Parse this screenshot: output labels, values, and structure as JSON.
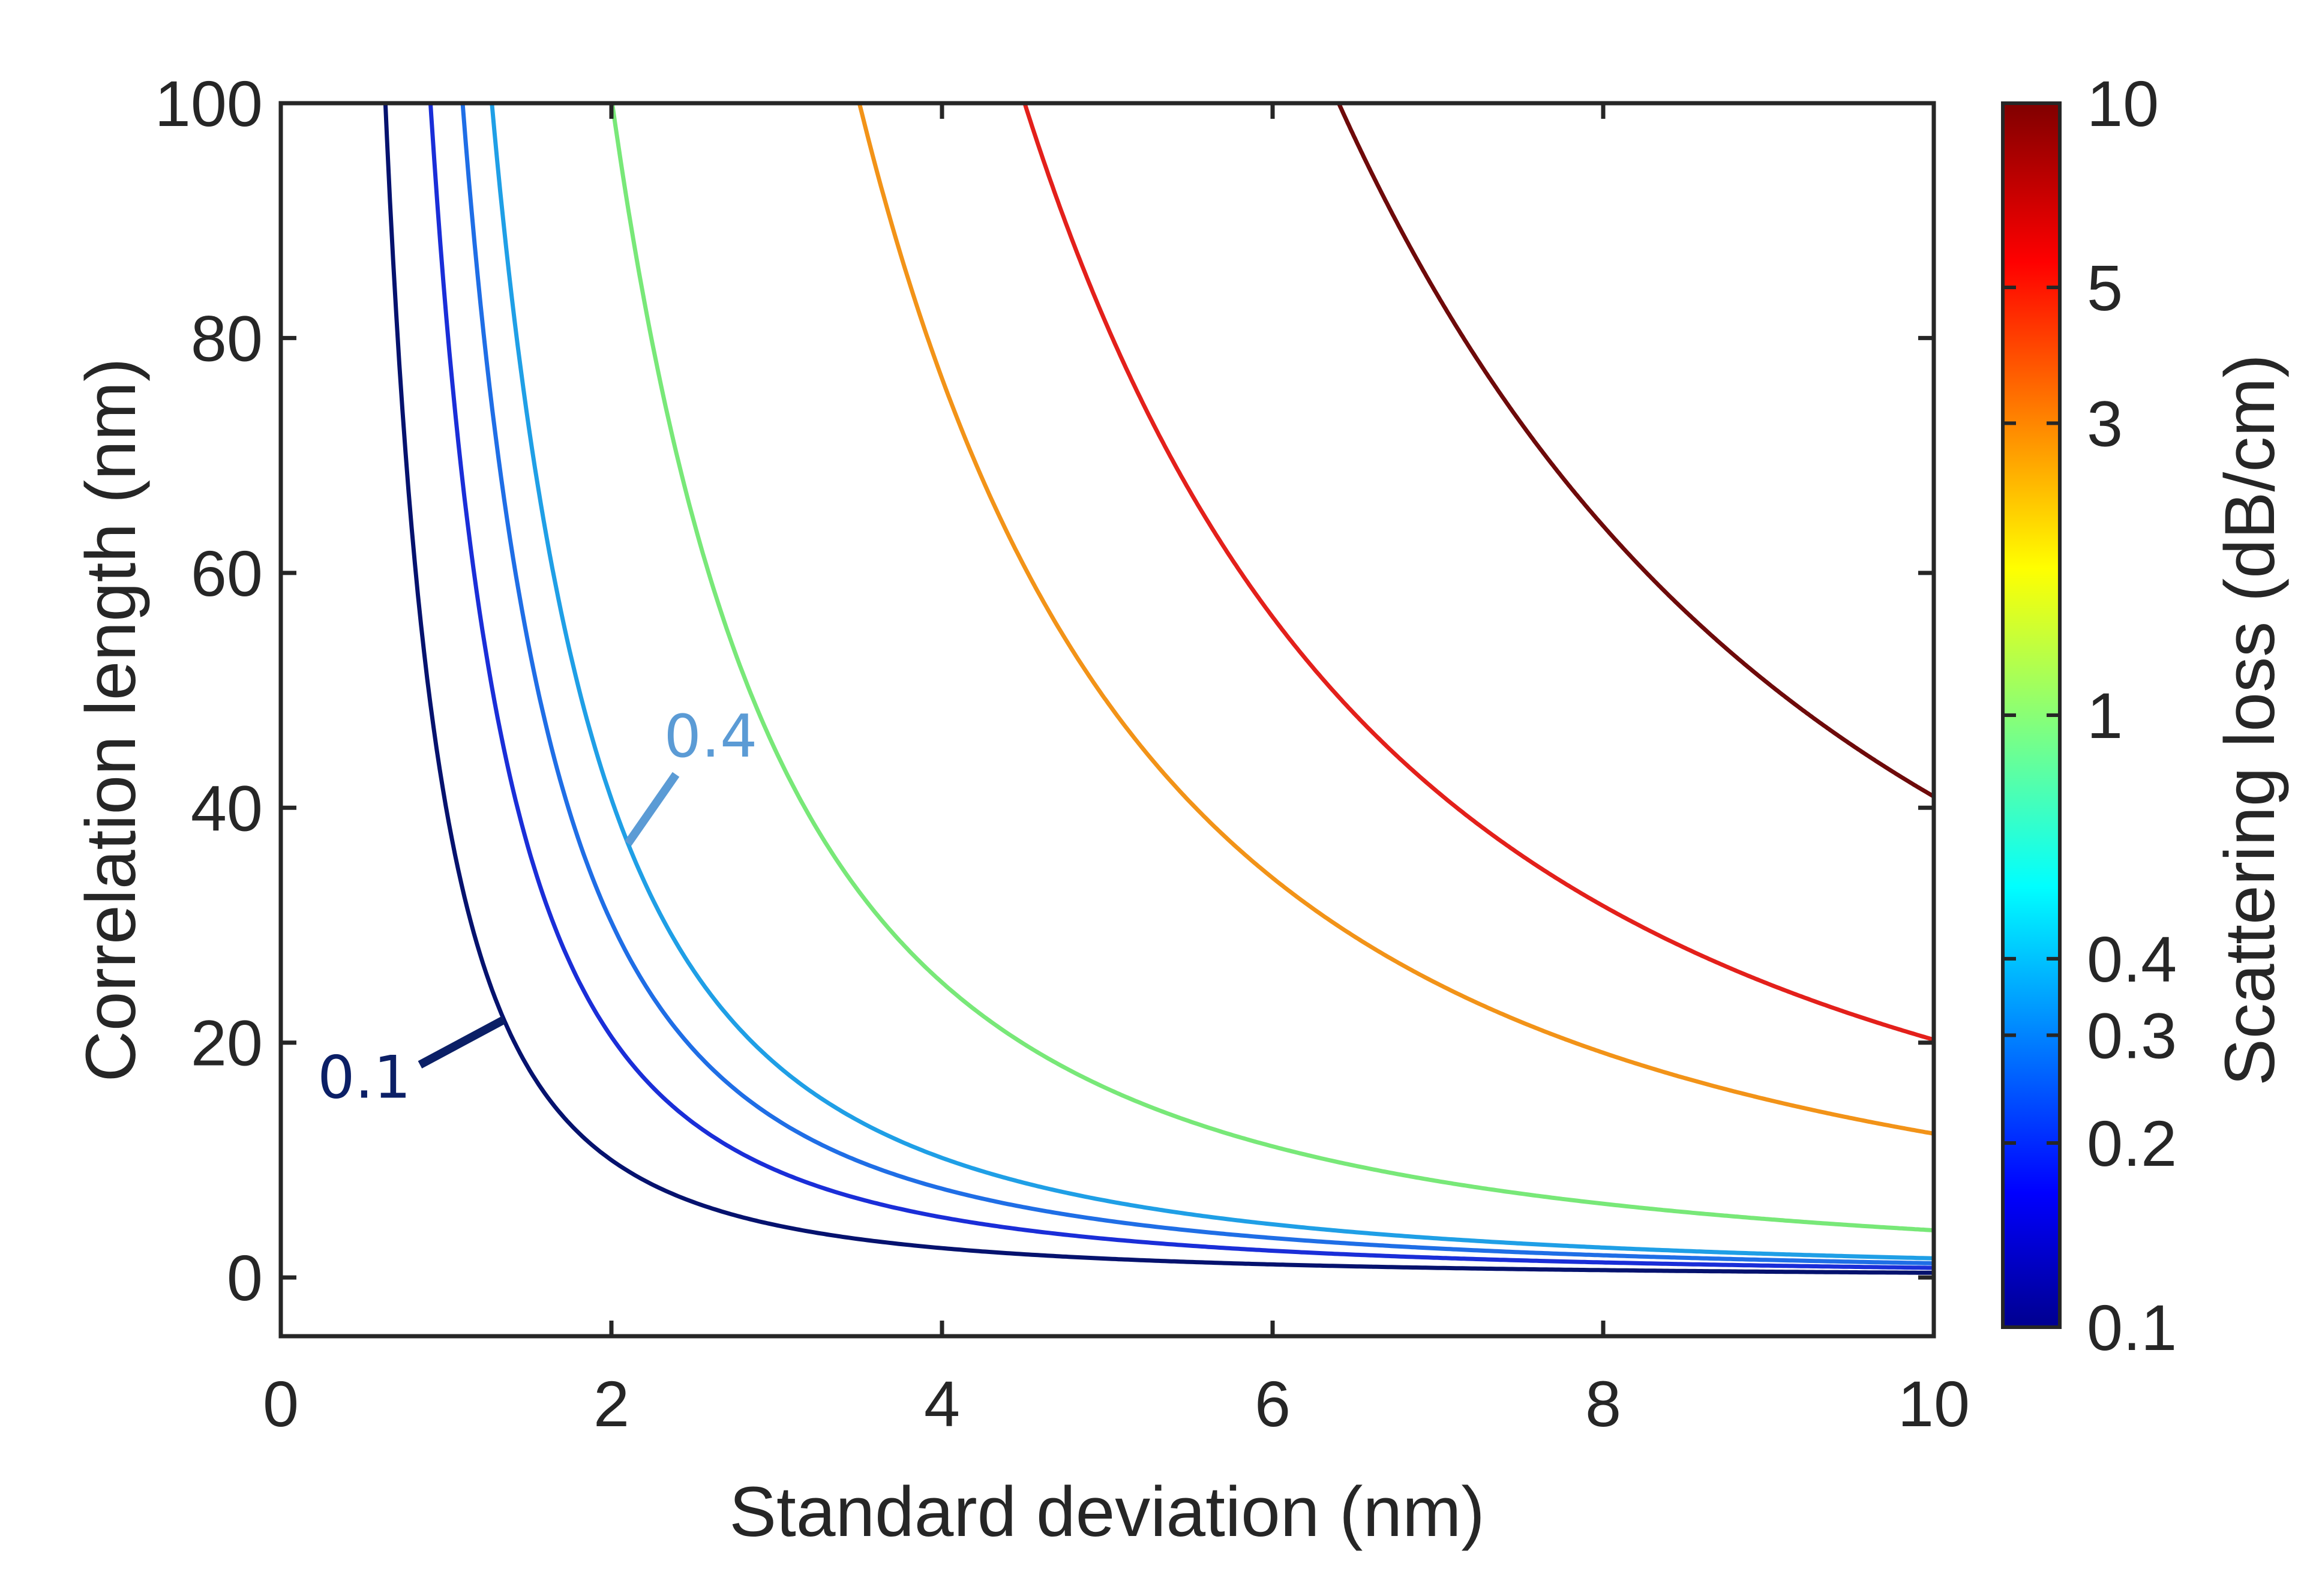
{
  "chart_data": {
    "type": "line",
    "title": "",
    "xlabel": "Standard deviation (nm)",
    "ylabel": "Correlation length (nm)",
    "xlim": [
      0,
      10
    ],
    "ylim": [
      -5,
      100
    ],
    "xticks": [
      0,
      2,
      4,
      6,
      8,
      10
    ],
    "yticks": [
      0,
      20,
      40,
      60,
      80,
      100
    ],
    "grid": false,
    "model": "Correlation length = K / (standard deviation)^2, one contour per scattering-loss level",
    "series": [
      {
        "name": "0.1 dB/cm",
        "loss": 0.1,
        "K": 40,
        "color": "#05126e"
      },
      {
        "name": "0.2 dB/cm",
        "loss": 0.2,
        "K": 82,
        "color": "#1a2ed8"
      },
      {
        "name": "0.3 dB/cm",
        "loss": 0.3,
        "K": 121,
        "color": "#1f6ee6"
      },
      {
        "name": "0.4 dB/cm",
        "loss": 0.4,
        "K": 163,
        "color": "#1f9fe6"
      },
      {
        "name": "1 dB/cm",
        "loss": 1,
        "K": 402,
        "color": "#78e878"
      },
      {
        "name": "3 dB/cm",
        "loss": 3,
        "K": 1225,
        "color": "#f29318"
      },
      {
        "name": "5 dB/cm",
        "loss": 5,
        "K": 2025,
        "color": "#e3201b"
      },
      {
        "name": "10 dB/cm",
        "loss": 10,
        "K": 4096,
        "color": "#6e0a0a"
      }
    ],
    "colorbar": {
      "label": "Scattering loss (dB/cm)",
      "scale": "log",
      "range": [
        0.1,
        10
      ],
      "ticks": [
        {
          "value": 0.1,
          "label": "0.1"
        },
        {
          "value": 0.2,
          "label": "0.2"
        },
        {
          "value": 0.3,
          "label": "0.3"
        },
        {
          "value": 0.4,
          "label": "0.4"
        },
        {
          "value": 1,
          "label": "1"
        },
        {
          "value": 3,
          "label": "3"
        },
        {
          "value": 5,
          "label": "5"
        },
        {
          "value": 10,
          "label": "10"
        }
      ]
    },
    "annotations": [
      {
        "text": "0.1",
        "series_loss": 0.1,
        "point_x": 1.35,
        "color": "#0b1f66"
      },
      {
        "text": "0.4",
        "series_loss": 0.4,
        "point_x": 2.1,
        "color": "#5b9bd5"
      }
    ]
  }
}
